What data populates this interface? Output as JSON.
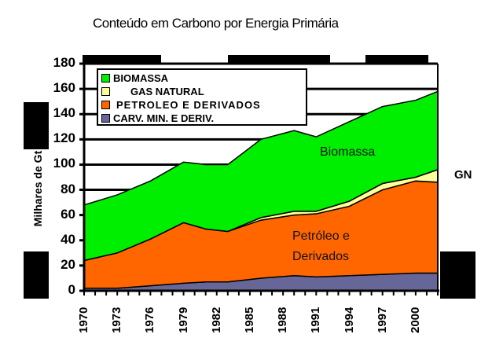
{
  "title": "Conteúdo em Carbono por Energia Primária",
  "y_axis_label": "Milhares de Gt",
  "legend": [
    {
      "label": "BIOMASSA",
      "color": "#00ee00"
    },
    {
      "label": "GAS NATURAL",
      "color": "#ffff99"
    },
    {
      "label": "PETROLEO E DERIVADOS",
      "color": "#ff6600"
    },
    {
      "label": "CARV. MIN. E DERIV.",
      "color": "#666699"
    }
  ],
  "annotations": {
    "biomassa": "Biomassa",
    "petroleo_line1": "Petróleo e",
    "petroleo_line2": "Derivados",
    "gn": "GN"
  },
  "y_ticks": [
    "0",
    "20",
    "40",
    "60",
    "80",
    "100",
    "120",
    "140",
    "160",
    "180"
  ],
  "x_ticks": [
    "1970",
    "1973",
    "1976",
    "1979",
    "1982",
    "1985",
    "1988",
    "1991",
    "1994",
    "1997",
    "2000"
  ],
  "chart_data": {
    "type": "area",
    "stacked": true,
    "title": "Conteúdo em Carbono por Energia Primária",
    "xlabel": "",
    "ylabel": "Milhares de Gt",
    "ylim": [
      0,
      180
    ],
    "xlim": [
      1970,
      2002
    ],
    "grid": "horizontal",
    "legend_position": "upper-left inside",
    "x": [
      1970,
      1973,
      1976,
      1979,
      1981,
      1983,
      1986,
      1989,
      1991,
      1994,
      1997,
      2000,
      2002
    ],
    "series": [
      {
        "name": "CARV. MIN. E DERIV.",
        "color": "#666699",
        "values": [
          2,
          2,
          4,
          6,
          7,
          7,
          10,
          12,
          11,
          12,
          13,
          14,
          14
        ]
      },
      {
        "name": "PETROLEO E DERIVADOS",
        "color": "#ff6600",
        "values": [
          22,
          28,
          37,
          48,
          42,
          40,
          46,
          48,
          50,
          55,
          67,
          73,
          72
        ]
      },
      {
        "name": "GAS NATURAL",
        "color": "#ffff99",
        "values": [
          0,
          0,
          0,
          0,
          0,
          0,
          2,
          3,
          2,
          4,
          5,
          3,
          10
        ]
      },
      {
        "name": "BIOMASSA",
        "color": "#00ee00",
        "values": [
          44,
          46,
          46,
          48,
          51,
          53,
          62,
          64,
          59,
          63,
          61,
          61,
          62
        ]
      }
    ],
    "totals": [
      68,
      76,
      87,
      102,
      100,
      100,
      120,
      127,
      122,
      134,
      146,
      151,
      158
    ]
  }
}
